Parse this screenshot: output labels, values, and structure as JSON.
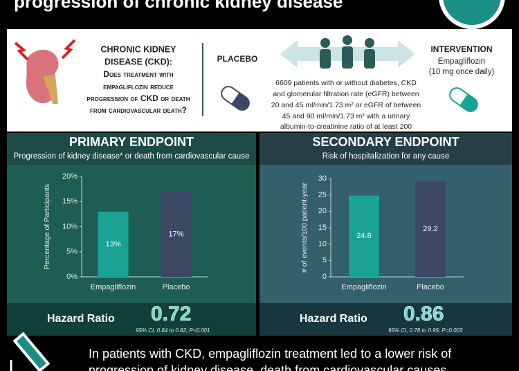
{
  "header": {
    "title": "progression of chronic kidney disease"
  },
  "question": {
    "heading": [
      "CHRONIC KIDNEY",
      "DISEASE (CKD):"
    ],
    "lines": [
      "Does treatment with",
      "empagliflozin reduce",
      "progression of CKD or death",
      "from cardiovascular death?"
    ]
  },
  "placebo_label": "PLACEBO",
  "population": {
    "lines": [
      "6609 patients with or without diabetes, CKD",
      "and glomerular filtration rate (eGFR) between",
      "20 and 45 ml/min/1.73 m² or eGFR of between",
      "45 and 90 ml/min/1.73 m² with a urinary",
      "albumin-to-creatinine ratio of at least 200"
    ]
  },
  "intervention": {
    "title": "INTERVENTION",
    "drug": "Empagliflozin",
    "dose": "(10 mg once daily)"
  },
  "chart_data": [
    {
      "type": "bar",
      "title": "PRIMARY ENDPOINT",
      "subtitle": "Progression of kidney disease* or death from cardiovascular cause",
      "y_label": "Percentage of Participants",
      "categories": [
        "Empagliflozin",
        "Placebo"
      ],
      "values": [
        13,
        17
      ],
      "value_labels": [
        "13%",
        "17%"
      ],
      "colors": [
        "#1aa394",
        "#3c4864"
      ],
      "ylim": [
        0,
        20
      ],
      "yticks": [
        {
          "value": 0,
          "label": "0%"
        },
        {
          "value": 5,
          "label": "5%"
        },
        {
          "value": 10,
          "label": "10%"
        },
        {
          "value": 15,
          "label": "15%"
        },
        {
          "value": 20,
          "label": "20%"
        }
      ],
      "hazard_ratio_label": "Hazard Ratio",
      "hazard_ratio": 0.72,
      "ci": "95% CI, 0.64 to 0.82; P<0.001"
    },
    {
      "type": "bar",
      "title": "SECONDARY ENDPOINT",
      "subtitle": "Risk of hospitalization for any cause",
      "y_label": "# of events/100 patient-year",
      "categories": [
        "Empagliflozin",
        "Placebo"
      ],
      "values": [
        24.8,
        29.2
      ],
      "colors": [
        "#1aa394",
        "#3c4864"
      ],
      "ylim": [
        0,
        30
      ],
      "yticks": [
        0,
        5,
        10,
        15,
        20,
        25,
        30
      ],
      "hazard_ratio_label": "Hazard Ratio",
      "hazard_ratio": 0.86,
      "ci": "95% CI, 0.78 to 0.95; P=0.003"
    }
  ],
  "conclusion": {
    "lines": [
      "In patients with CKD, empagliflozin treatment led to a lower risk of",
      "progression of kidney disease, death from cardiovascular causes"
    ]
  }
}
